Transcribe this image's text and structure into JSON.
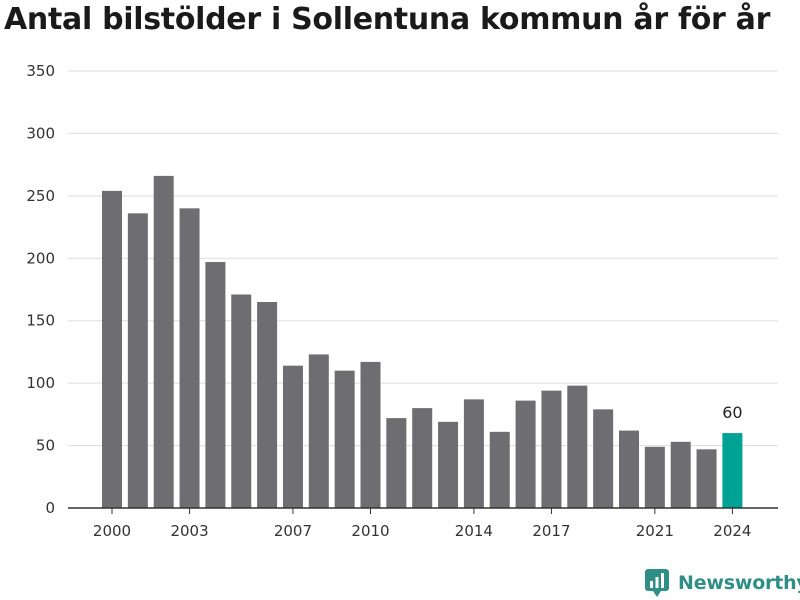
{
  "chart_data": {
    "type": "bar",
    "title": "Antal bilstölder i Sollentuna kommun år för år",
    "xlabel": "",
    "ylabel": "",
    "ylim": [
      0,
      350
    ],
    "yticks": [
      0,
      50,
      100,
      150,
      200,
      250,
      300,
      350
    ],
    "grid": true,
    "categories": [
      "2000",
      "2001",
      "2002",
      "2003",
      "2004",
      "2005",
      "2006",
      "2007",
      "2008",
      "2009",
      "2010",
      "2011",
      "2012",
      "2013",
      "2014",
      "2015",
      "2016",
      "2017",
      "2018",
      "2019",
      "2020",
      "2021",
      "2022",
      "2023",
      "2024"
    ],
    "xtick_labels": [
      "2000",
      "2003",
      "2007",
      "2010",
      "2014",
      "2017",
      "2021",
      "2024"
    ],
    "values": [
      254,
      236,
      266,
      240,
      197,
      171,
      165,
      114,
      123,
      110,
      117,
      72,
      80,
      69,
      87,
      61,
      86,
      94,
      98,
      79,
      62,
      49,
      53,
      47,
      60
    ],
    "highlight": {
      "category": "2024",
      "label": "60"
    },
    "colors": {
      "bar": "#6e6d72",
      "highlight": "#00a296",
      "grid": "#dddddd",
      "axis": "#333333"
    }
  },
  "brand": {
    "name": "Newsworthy",
    "icon": "newsworthy-logo-icon",
    "color": "#2f8f87"
  }
}
